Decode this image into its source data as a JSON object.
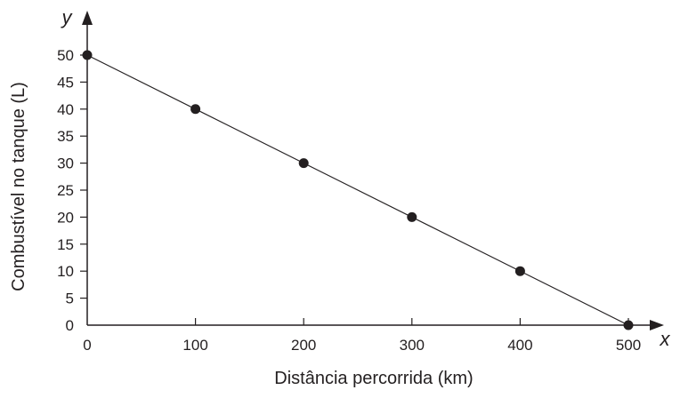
{
  "chart_data": {
    "type": "scatter",
    "xlabel": "Distância percorrida (km)",
    "ylabel": "Combustível no tanque (L)",
    "x_var": "x",
    "y_var": "y",
    "x_ticks": [
      0,
      100,
      200,
      300,
      400,
      500
    ],
    "y_ticks": [
      0,
      5,
      10,
      15,
      20,
      25,
      30,
      35,
      40,
      45,
      50
    ],
    "xlim": [
      0,
      500
    ],
    "ylim": [
      0,
      50
    ],
    "grid": false,
    "trend_line": {
      "from": [
        0,
        50
      ],
      "to": [
        500,
        0
      ]
    },
    "series": [
      {
        "points": [
          {
            "x": 0,
            "y": 50
          },
          {
            "x": 100,
            "y": 40
          },
          {
            "x": 200,
            "y": 30
          },
          {
            "x": 300,
            "y": 20
          },
          {
            "x": 400,
            "y": 10
          },
          {
            "x": 500,
            "y": 0
          }
        ]
      }
    ],
    "colors": {
      "ink": "#231f20"
    }
  }
}
